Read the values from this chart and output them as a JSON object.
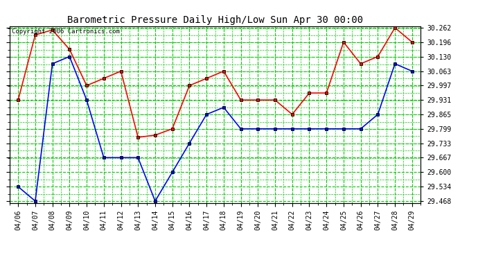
{
  "title": "Barometric Pressure Daily High/Low Sun Apr 30 00:00",
  "copyright": "Copyright 2006 Cartronics.com",
  "x_labels": [
    "04/06",
    "04/07",
    "04/08",
    "04/09",
    "04/10",
    "04/11",
    "04/12",
    "04/13",
    "04/14",
    "04/15",
    "04/16",
    "04/17",
    "04/18",
    "04/19",
    "04/20",
    "04/21",
    "04/22",
    "04/23",
    "04/24",
    "04/25",
    "04/26",
    "04/27",
    "04/28",
    "04/29"
  ],
  "high_values": [
    29.931,
    30.229,
    30.252,
    30.163,
    29.997,
    30.03,
    30.063,
    29.76,
    29.77,
    29.799,
    29.997,
    30.03,
    30.063,
    29.931,
    29.931,
    29.931,
    29.865,
    29.963,
    29.963,
    30.196,
    30.097,
    30.13,
    30.262,
    30.196
  ],
  "low_values": [
    29.534,
    29.468,
    30.097,
    30.13,
    29.931,
    29.667,
    29.667,
    29.667,
    29.468,
    29.6,
    29.733,
    29.865,
    29.897,
    29.799,
    29.799,
    29.799,
    29.799,
    29.799,
    29.799,
    29.799,
    29.799,
    29.865,
    30.097,
    30.063
  ],
  "y_min": 29.468,
  "y_max": 30.262,
  "y_ticks": [
    29.468,
    29.534,
    29.6,
    29.667,
    29.733,
    29.799,
    29.865,
    29.931,
    29.997,
    30.063,
    30.13,
    30.196,
    30.262
  ],
  "high_color": "#ff0000",
  "low_color": "#0000ff",
  "bg_color": "#ffffff",
  "plot_bg_color": "#ffffff",
  "grid_color": "#00cc00",
  "title_fontsize": 10,
  "tick_fontsize": 7,
  "copyright_fontsize": 6.5
}
